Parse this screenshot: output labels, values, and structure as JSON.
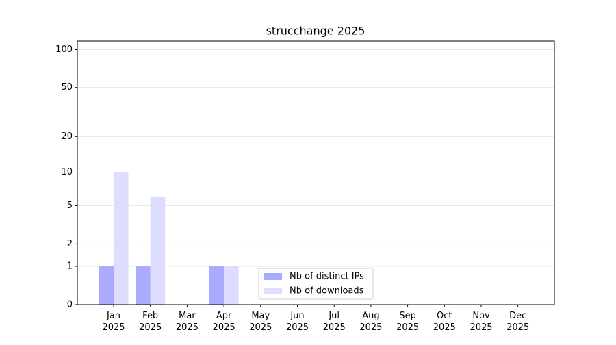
{
  "chart_data": {
    "type": "bar",
    "title": "strucchange 2025",
    "categories": [
      "Jan 2025",
      "Feb 2025",
      "Mar 2025",
      "Apr 2025",
      "May 2025",
      "Jun 2025",
      "Jul 2025",
      "Aug 2025",
      "Sep 2025",
      "Oct 2025",
      "Nov 2025",
      "Dec 2025"
    ],
    "series": [
      {
        "name": "Nb of distinct IPs",
        "color": "#aaaaff",
        "values": [
          1,
          1,
          0,
          1,
          0,
          0,
          0,
          0,
          0,
          0,
          0,
          0
        ]
      },
      {
        "name": "Nb of downloads",
        "color": "#ddddff",
        "values": [
          10,
          6,
          0,
          1,
          0,
          0,
          0,
          0,
          0,
          0,
          0,
          0
        ]
      }
    ],
    "yscale": "log1p",
    "ylim": [
      0,
      117
    ],
    "yticks": [
      0,
      1,
      2,
      5,
      10,
      20,
      50,
      100
    ],
    "grid": true,
    "legend": "lower center"
  }
}
